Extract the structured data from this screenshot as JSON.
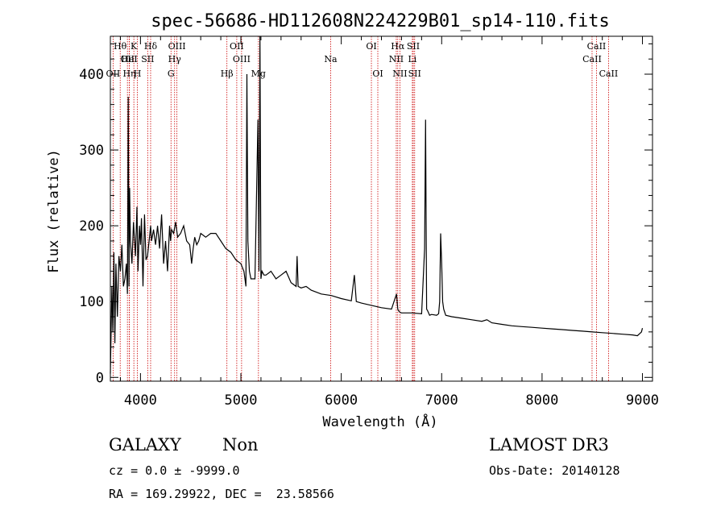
{
  "chart_data": {
    "type": "line",
    "title": "spec-56686-HD112608N224229B01_sp14-110.fits",
    "xlabel": "Wavelength (Å)",
    "ylabel": "Flux (relative)",
    "xlim": [
      3700,
      9100
    ],
    "ylim": [
      -5,
      450
    ],
    "xticks": [
      4000,
      5000,
      6000,
      7000,
      8000,
      9000
    ],
    "yticks": [
      0,
      100,
      200,
      300,
      400
    ],
    "grid": false,
    "series": [
      {
        "name": "spectrum",
        "color": "#000000",
        "x": [
          3700,
          3715,
          3725,
          3735,
          3745,
          3755,
          3770,
          3785,
          3800,
          3815,
          3830,
          3845,
          3860,
          3870,
          3878,
          3885,
          3892,
          3900,
          3915,
          3930,
          3950,
          3965,
          3975,
          3990,
          4000,
          4010,
          4025,
          4040,
          4055,
          4070,
          4090,
          4101,
          4110,
          4130,
          4150,
          4170,
          4190,
          4210,
          4230,
          4250,
          4270,
          4290,
          4300,
          4310,
          4330,
          4350,
          4370,
          4400,
          4430,
          4460,
          4490,
          4510,
          4525,
          4540,
          4560,
          4580,
          4600,
          4650,
          4700,
          4750,
          4800,
          4850,
          4900,
          4950,
          5000,
          5030,
          5050,
          5060,
          5070,
          5085,
          5100,
          5140,
          5170,
          5180,
          5190,
          5200,
          5210,
          5230,
          5250,
          5300,
          5350,
          5400,
          5450,
          5500,
          5550,
          5560,
          5570,
          5600,
          5650,
          5700,
          5800,
          5900,
          6000,
          6100,
          6130,
          6150,
          6200,
          6300,
          6400,
          6500,
          6550,
          6563,
          6570,
          6584,
          6600,
          6700,
          6800,
          6830,
          6840,
          6850,
          6860,
          6880,
          6900,
          6950,
          6970,
          6980,
          6990,
          7000,
          7010,
          7020,
          7040,
          7100,
          7200,
          7300,
          7400,
          7450,
          7500,
          7600,
          7700,
          7800,
          7900,
          8000,
          8100,
          8200,
          8300,
          8400,
          8500,
          8600,
          8700,
          8800,
          8900,
          8950,
          8990,
          9000
        ],
        "values": [
          5,
          120,
          60,
          165,
          45,
          150,
          80,
          160,
          140,
          175,
          120,
          130,
          150,
          110,
          370,
          120,
          250,
          180,
          150,
          205,
          160,
          225,
          140,
          200,
          175,
          210,
          120,
          215,
          155,
          160,
          185,
          200,
          180,
          195,
          175,
          200,
          170,
          215,
          150,
          180,
          140,
          200,
          180,
          195,
          190,
          205,
          185,
          190,
          200,
          180,
          175,
          150,
          170,
          185,
          175,
          180,
          190,
          185,
          190,
          190,
          180,
          170,
          165,
          155,
          150,
          140,
          120,
          400,
          180,
          140,
          130,
          130,
          340,
          140,
          450,
          130,
          140,
          135,
          135,
          140,
          130,
          135,
          140,
          125,
          120,
          160,
          120,
          118,
          120,
          115,
          110,
          108,
          104,
          101,
          135,
          100,
          98,
          95,
          92,
          90,
          110,
          90,
          88,
          86,
          85,
          85,
          84,
          170,
          340,
          90,
          88,
          82,
          83,
          82,
          84,
          100,
          190,
          150,
          100,
          90,
          82,
          80,
          78,
          76,
          74,
          76,
          72,
          70,
          68,
          67,
          66,
          65,
          64,
          63,
          62,
          61,
          60,
          59,
          58,
          57,
          56,
          55,
          60,
          65
        ]
      }
    ],
    "line_markers": [
      {
        "label": "OII",
        "wavelength": 3727,
        "row": 2
      },
      {
        "label": "Hθ",
        "wavelength": 3798,
        "row": 0
      },
      {
        "label": "OII",
        "wavelength": 3870,
        "row": 1
      },
      {
        "label": "HeI",
        "wavelength": 3889,
        "row": 1
      },
      {
        "label": "Hη",
        "wavelength": 3889,
        "row": 2
      },
      {
        "label": "K",
        "wavelength": 3934,
        "row": 0
      },
      {
        "label": "H",
        "wavelength": 3969,
        "row": 2
      },
      {
        "label": "Hδ",
        "wavelength": 4101,
        "row": 0
      },
      {
        "label": "SII",
        "wavelength": 4072,
        "row": 1
      },
      {
        "label": "OIII",
        "wavelength": 4363,
        "row": 0
      },
      {
        "label": "Hγ",
        "wavelength": 4340,
        "row": 1
      },
      {
        "label": "G",
        "wavelength": 4304,
        "row": 2
      },
      {
        "label": "Hβ",
        "wavelength": 4861,
        "row": 2
      },
      {
        "label": "OII",
        "wavelength": 4959,
        "row": 0
      },
      {
        "label": "OIII",
        "wavelength": 5007,
        "row": 1
      },
      {
        "label": "Mg",
        "wavelength": 5175,
        "row": 2
      },
      {
        "label": "Na",
        "wavelength": 5894,
        "row": 1
      },
      {
        "label": "OI",
        "wavelength": 6300,
        "row": 0
      },
      {
        "label": "OI",
        "wavelength": 6364,
        "row": 2
      },
      {
        "label": "Hα",
        "wavelength": 6563,
        "row": 0
      },
      {
        "label": "NII",
        "wavelength": 6548,
        "row": 1
      },
      {
        "label": "NII",
        "wavelength": 6584,
        "row": 2
      },
      {
        "label": "SII",
        "wavelength": 6717,
        "row": 0
      },
      {
        "label": "Li",
        "wavelength": 6708,
        "row": 1
      },
      {
        "label": "SII",
        "wavelength": 6731,
        "row": 2
      },
      {
        "label": "CaII",
        "wavelength": 8542,
        "row": 0
      },
      {
        "label": "CaII",
        "wavelength": 8498,
        "row": 1
      },
      {
        "label": "CaII",
        "wavelength": 8662,
        "row": 2
      }
    ]
  },
  "info": {
    "class_label": "GALAXY",
    "subclass_label": "Non",
    "survey_label": "LAMOST DR3",
    "redshift_text": "cz = 0.0 ± -9999.0",
    "obs_date_text": "Obs-Date: 20140128",
    "coords_text": "RA = 169.29922, DEC =  23.58566"
  },
  "colors": {
    "marker": "#cc0000",
    "line": "#000000"
  }
}
